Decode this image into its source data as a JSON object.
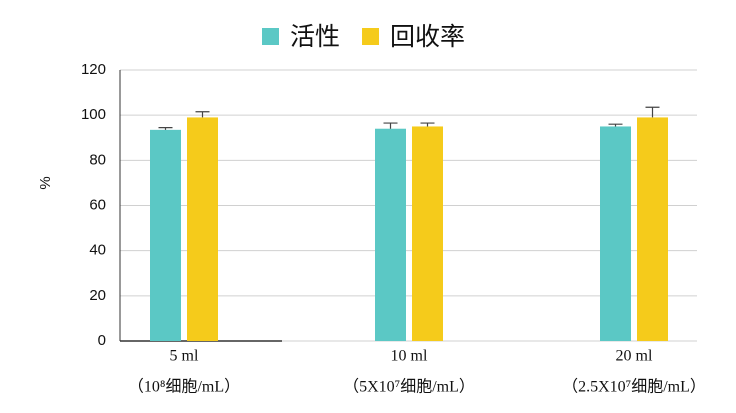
{
  "chart_data": {
    "type": "bar",
    "categories": [
      [
        "5 ml",
        "（10⁸细胞/mL）"
      ],
      [
        "10 ml",
        "（5X10⁷细胞/mL）"
      ],
      [
        "20 ml",
        "（2.5X10⁷细胞/mL）"
      ]
    ],
    "series": [
      {
        "name": "活性",
        "color": "#5bc8c5",
        "values": [
          93.5,
          94,
          95
        ],
        "errors": [
          1,
          2.5,
          1
        ]
      },
      {
        "name": "回收率",
        "color": "#f5cb1b",
        "values": [
          99,
          95,
          99
        ],
        "errors": [
          2.5,
          1.5,
          4.5
        ]
      }
    ],
    "ylabel": "%",
    "ylim": [
      0,
      120
    ],
    "yticks": [
      0,
      20,
      40,
      60,
      80,
      100,
      120
    ],
    "grid": true,
    "legend": "top"
  }
}
